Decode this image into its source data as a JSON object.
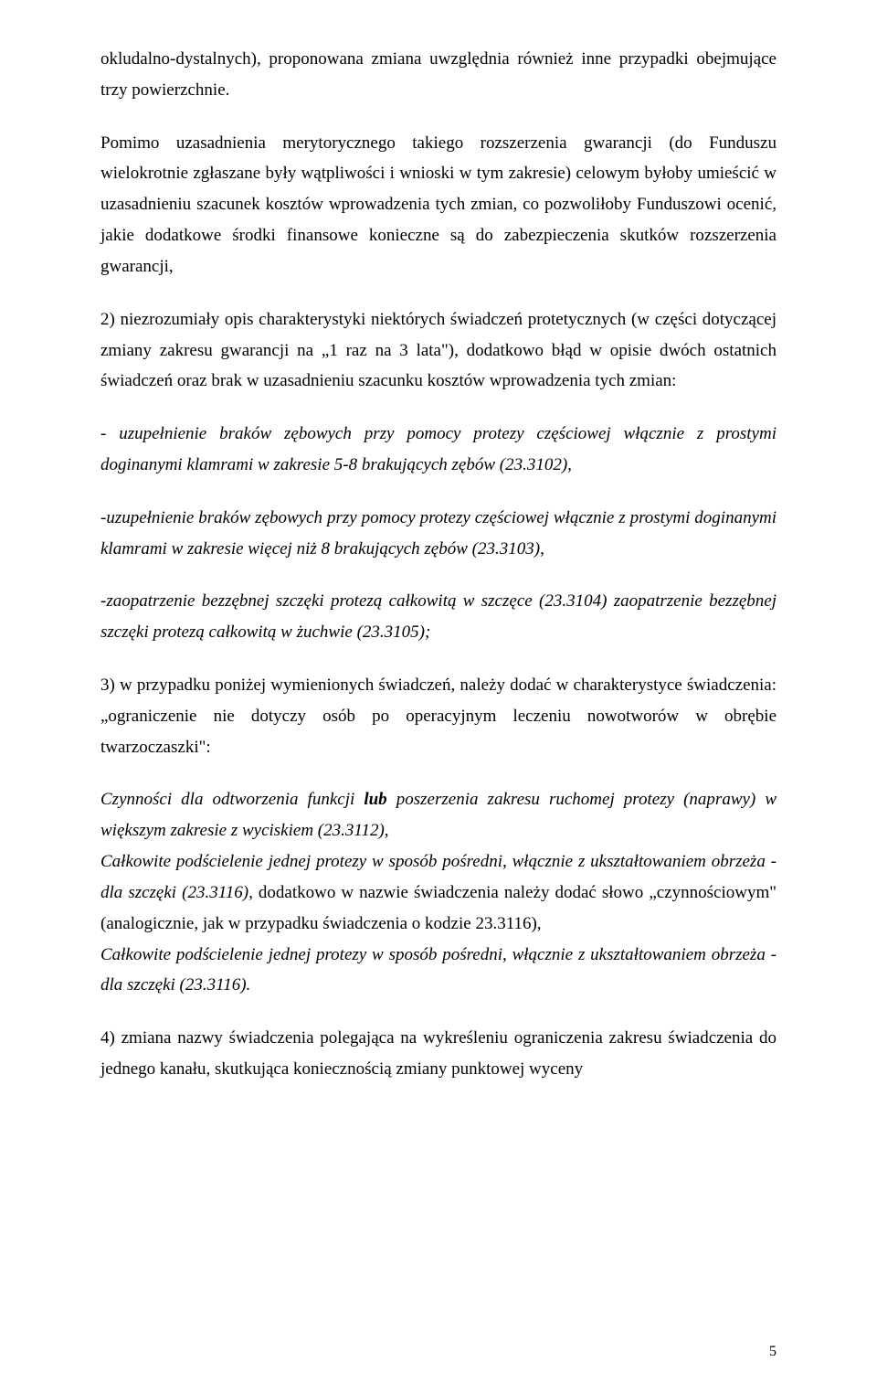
{
  "p1": {
    "run1": "okludalno-dystalnych), proponowana zmiana uwzględnia również inne przypadki obejmujące trzy powierzchnie."
  },
  "p2": {
    "run1": "Pomimo uzasadnienia merytorycznego takiego rozszerzenia gwarancji (do Funduszu wielokrotnie zgłaszane były wątpliwości i wnioski w tym zakresie) celowym byłoby umieścić w uzasadnieniu szacunek kosztów wprowadzenia tych zmian, co pozwoliłoby Funduszowi ocenić, jakie dodatkowe środki finansowe konieczne są do zabezpieczenia skutków rozszerzenia gwarancji,"
  },
  "p3": {
    "run1": "2)           niezrozumiały opis charakterystyki niektórych świadczeń protetycznych (w części dotyczącej zmiany zakresu gwarancji na „1 raz na 3 lata\"), dodatkowo błąd w opisie dwóch ostatnich świadczeń oraz brak w uzasadnieniu szacunku kosztów wprowadzenia tych zmian:"
  },
  "p4": {
    "run1": "- uzupełnienie braków zębowych przy pomocy protezy częściowej włącznie z prostymi doginanymi klamrami w zakresie 5-8 brakujących zębów (23.3102),"
  },
  "p5": {
    "run1": "-uzupełnienie braków zębowych przy pomocy protezy częściowej włącznie z prostymi doginanymi klamrami w zakresie więcej niż 8 brakujących zębów (23.3103),"
  },
  "p6": {
    "run1": "-zaopatrzenie bezzębnej szczęki protezą całkowitą w szczęce (23.3104) zaopatrzenie bezzębnej szczęki protezą całkowitą w żuchwie (23.3105);"
  },
  "p7": {
    "run1": "3)             w przypadku poniżej wymienionych świadczeń, należy dodać w charakterystyce świadczenia: „ograniczenie nie dotyczy osób po operacyjnym leczeniu nowotworów w obrębie twarzoczaszki\":"
  },
  "p8": {
    "run1": "Czynności dla odtworzenia funkcji ",
    "run2": "lub",
    "run3": " poszerzenia zakresu ruchomej protezy (naprawy) w większym zakresie z wyciskiem (23.3112),"
  },
  "p9": {
    "run1": "Całkowite podścielenie jednej protezy w sposób pośredni, włącznie z ukształtowaniem obrzeża - dla szczęki (23.3116), ",
    "run2": "dodatkowo w nazwie świadczenia należy dodać słowo „czynnościowym\" (analogicznie, jak w przypadku świadczenia o kodzie 23.3116),"
  },
  "p10": {
    "run1": "Całkowite podścielenie jednej protezy w sposób pośredni, włącznie z ukształtowaniem obrzeża - dla szczęki (23.3116)."
  },
  "p11": {
    "run1": "4)       zmiana nazwy świadczenia polegająca na wykreśleniu ograniczenia zakresu świadczenia do jednego kanału, skutkująca koniecznością zmiany punktowej wyceny"
  },
  "pageNumber": "5"
}
